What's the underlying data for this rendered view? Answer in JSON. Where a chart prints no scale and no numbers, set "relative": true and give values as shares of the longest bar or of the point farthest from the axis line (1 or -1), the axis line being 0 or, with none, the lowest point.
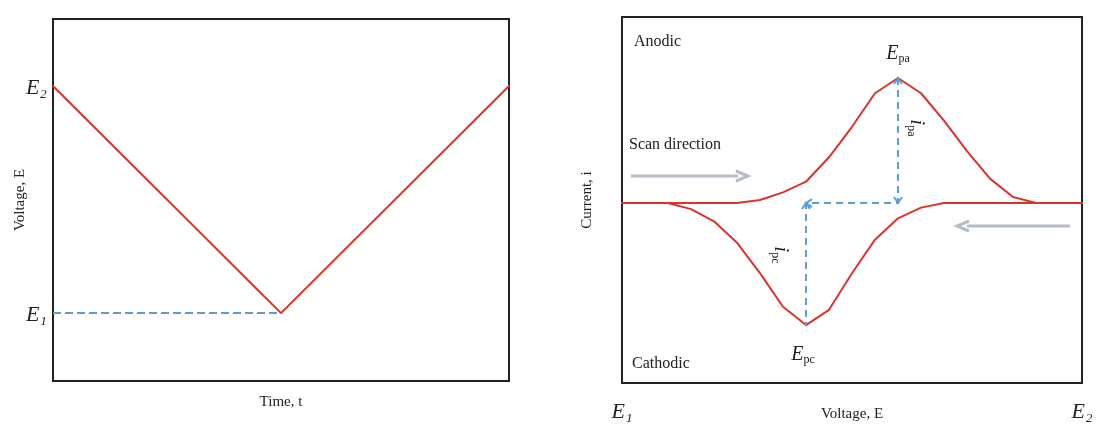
{
  "chart_data": [
    {
      "type": "line",
      "relative": true,
      "categories": [
        null,
        null,
        null
      ],
      "values": [
        1,
        0.23,
        1
      ],
      "color": "#d9342b",
      "xlabel": "Time, t",
      "ylabel": "Voltage, E",
      "ref_lines": [
        {
          "axis": "y",
          "value": 0.23,
          "label": "E₁",
          "color": "#5b9fd6",
          "line_style": "dashed"
        }
      ],
      "annotations": [
        "E₂"
      ]
    },
    {
      "type": "line",
      "relative": true,
      "categories": [
        "E₁",
        null,
        null,
        null,
        null,
        null,
        null,
        null,
        null,
        null,
        null,
        null,
        null,
        null,
        null,
        null,
        null,
        null,
        null,
        null,
        "E₂"
      ],
      "xlabel": "Voltage, E",
      "ylabel": "Current, i",
      "series": [
        {
          "color": "#d9342b",
          "values": [
            0.59,
            0.59,
            0.59,
            0.59,
            0.59,
            0.59,
            0.6,
            0.625,
            0.66,
            0.74,
            0.84,
            0.95,
            1,
            0.95,
            0.86,
            0.76,
            0.67,
            0.61,
            0.59,
            0.59,
            0.59
          ]
        },
        {
          "color": "#d9342b",
          "values": [
            0.59,
            0.59,
            0.59,
            0.57,
            0.53,
            0.46,
            0.36,
            0.25,
            0.19,
            0.24,
            0.36,
            0.47,
            0.54,
            0.575,
            0.59,
            0.59,
            0.59,
            0.59,
            0.59,
            0.59,
            0.59
          ]
        }
      ],
      "annotations": [
        "Anodic",
        "Scan direction",
        "Cathodic",
        "E$_{pa}$",
        "E$_{pc}$",
        "i$_{pa}$",
        "i$_{pc}$"
      ]
    }
  ]
}
